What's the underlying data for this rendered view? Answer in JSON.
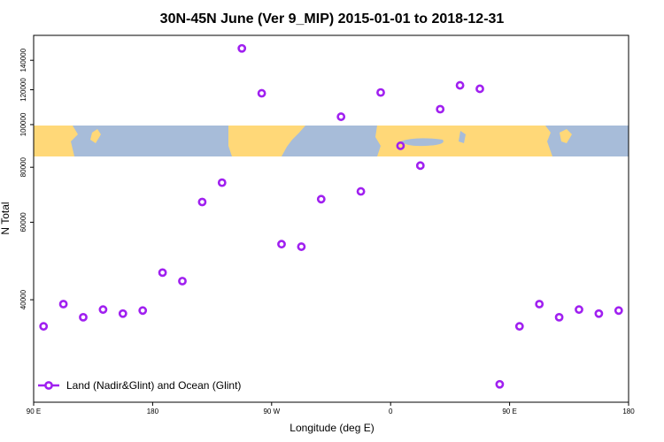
{
  "chart_data": {
    "type": "scatter",
    "title": "30N-45N June (Ver 9_MIP)   2015-01-01 to 2018-12-31",
    "x_label": "Longitude (deg E)",
    "y_label": "N Total",
    "xlim": [
      90,
      540
    ],
    "xticks": [
      {
        "value": 90,
        "label": "90 E"
      },
      180,
      {
        "value": 270,
        "label": "90 W"
      },
      {
        "value": 360,
        "label": "0"
      },
      {
        "value": 450,
        "label": "90 E"
      },
      {
        "value": 540,
        "label": "180"
      }
    ],
    "ylim": [
      23400,
      159500
    ],
    "yticks": [
      40000,
      60000,
      80000,
      100000,
      120000,
      140000
    ],
    "ylog": true,
    "legend_position": "lower left",
    "series": [
      {
        "name": "Land (Nadir&Glint) and Ocean (Glint)",
        "color": "#a020f0",
        "x": [
          97.5,
          112.5,
          127.5,
          142.5,
          157.5,
          172.5,
          187.5,
          202.5,
          217.5,
          232.5,
          247.5,
          262.5,
          277.5,
          292.5,
          307.5,
          322.5,
          337.5,
          352.5,
          367.5,
          382.5,
          397.5,
          412.5,
          427.5,
          442.5,
          457.5,
          472.5,
          487.5,
          502.5,
          517.5,
          532.5
        ],
        "values": [
          34800,
          39100,
          36500,
          38000,
          37200,
          37800,
          46100,
          44100,
          66700,
          73800,
          149000,
          117800,
          53500,
          52800,
          67700,
          104200,
          70500,
          118300,
          89500,
          80700,
          108400,
          122800,
          120600,
          25700,
          34800,
          39100,
          36500,
          38000,
          37200,
          37800
        ]
      }
    ]
  }
}
